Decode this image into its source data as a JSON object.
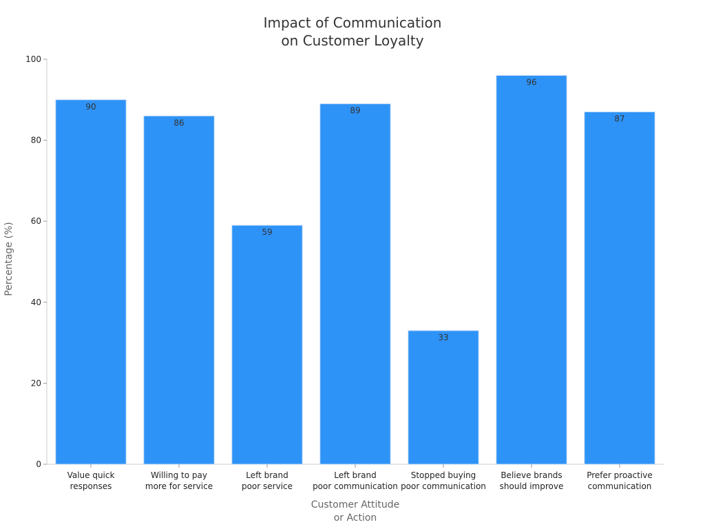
{
  "chart_data": {
    "type": "bar",
    "title_lines": [
      "Impact of Communication",
      "on Customer Loyalty"
    ],
    "xlabel_lines": [
      "Customer Attitude",
      "or Action"
    ],
    "ylabel": "Percentage (%)",
    "categories": [
      [
        "Value quick",
        "responses"
      ],
      [
        "Willing to pay",
        "more for service"
      ],
      [
        "Left brand",
        "poor service"
      ],
      [
        "Left brand",
        "poor communication"
      ],
      [
        "Stopped buying",
        "poor communication"
      ],
      [
        "Believe brands",
        "should improve"
      ],
      [
        "Prefer proactive",
        "communication"
      ]
    ],
    "values": [
      90,
      86,
      59,
      89,
      33,
      96,
      87
    ],
    "ylim": [
      0,
      100
    ],
    "yticks": [
      0,
      20,
      40,
      60,
      80,
      100
    ],
    "bar_color": "#2e93f7",
    "grid": false,
    "legend": "none"
  }
}
